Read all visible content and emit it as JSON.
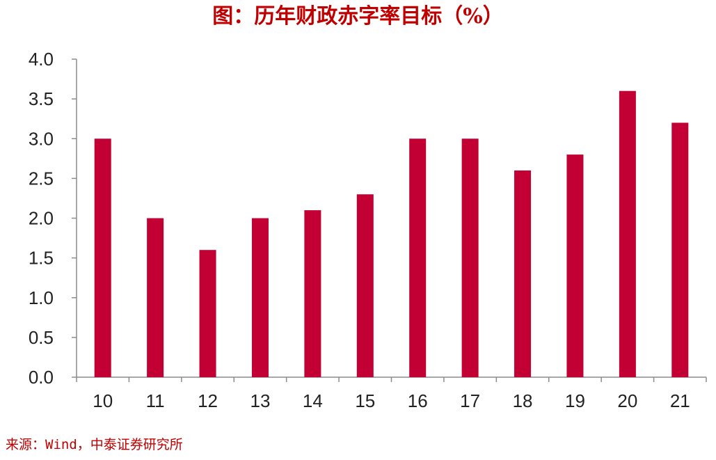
{
  "title": "图：历年财政赤字率目标（%）",
  "source": "来源：Wind，中泰证券研究所",
  "colors": {
    "bar": "#c20033",
    "title": "#c00000",
    "axis": "#8c8c8c",
    "text": "#222222"
  },
  "chart_data": {
    "type": "bar",
    "title": "图：历年财政赤字率目标（%）",
    "xlabel": "",
    "ylabel": "",
    "categories": [
      "10",
      "11",
      "12",
      "13",
      "14",
      "15",
      "16",
      "17",
      "18",
      "19",
      "20",
      "21"
    ],
    "values": [
      3.0,
      2.0,
      1.6,
      2.0,
      2.1,
      2.3,
      3.0,
      3.0,
      2.6,
      2.8,
      3.6,
      3.2
    ],
    "ylim": [
      0,
      4.0
    ],
    "yticks": [
      "0.0",
      "0.5",
      "1.0",
      "1.5",
      "2.0",
      "2.5",
      "3.0",
      "3.5",
      "4.0"
    ],
    "grid": false,
    "legend": "none"
  }
}
